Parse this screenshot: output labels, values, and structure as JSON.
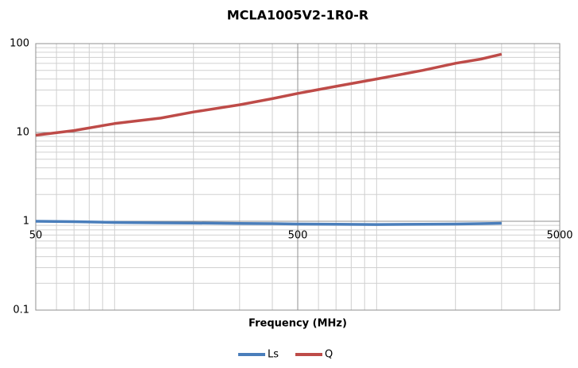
{
  "chart_data": {
    "type": "line",
    "title": "MCLA1005V2-1R0-R",
    "x_label": "Frequency  (MHz)",
    "x": [
      50,
      70,
      100,
      150,
      200,
      300,
      400,
      500,
      700,
      1000,
      1500,
      2000,
      2500,
      3000
    ],
    "series": [
      {
        "name": "Ls",
        "color": "#4a7ebb",
        "values": [
          1.0,
          0.99,
          0.97,
          0.96,
          0.955,
          0.945,
          0.94,
          0.93,
          0.925,
          0.92,
          0.925,
          0.93,
          0.94,
          0.95
        ]
      },
      {
        "name": "Q",
        "color": "#be4b48",
        "values": [
          9.3,
          10.5,
          12.6,
          14.5,
          17,
          20.5,
          24,
          27.5,
          33,
          40,
          50,
          60,
          67,
          76
        ]
      }
    ],
    "xlim": [
      50,
      5000
    ],
    "xticks": [
      50,
      500,
      5000
    ],
    "xlog": true,
    "ylim": [
      0.1,
      100
    ],
    "yticks": [
      0.1,
      1,
      10,
      100
    ],
    "ylog": true,
    "grid": true,
    "legend": "bottom"
  }
}
